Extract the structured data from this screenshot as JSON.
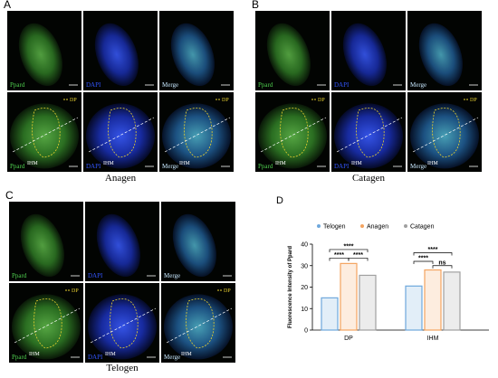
{
  "panels": [
    {
      "label": "A",
      "caption": "Anagen",
      "tiles": [
        "Ppard",
        "DAPI",
        "Merge"
      ],
      "dp": "DP",
      "ihm": "IHM"
    },
    {
      "label": "B",
      "caption": "Catagen",
      "tiles": [
        "Ppard",
        "DAPI",
        "Merge"
      ],
      "dp": "DP",
      "ihm": "IHM"
    },
    {
      "label": "C",
      "caption": "Telogen",
      "tiles": [
        "Ppard",
        "DAPI",
        "Merge"
      ],
      "dp": "DP",
      "ihm": "IHM"
    }
  ],
  "chart_data": {
    "type": "bar",
    "label": "D",
    "ylabel": "Fluorescence Intensity of Ppard",
    "categories": [
      "DP",
      "IHM"
    ],
    "series": [
      {
        "name": "Telogen",
        "color": "#6fa8dc",
        "values": [
          15,
          20.5
        ]
      },
      {
        "name": "Anagen",
        "color": "#f4a460",
        "values": [
          31,
          28
        ]
      },
      {
        "name": "Catagen",
        "color": "#a0a0a0",
        "values": [
          25.5,
          27
        ]
      }
    ],
    "ylim": [
      0,
      40
    ],
    "yticks": [
      0,
      10,
      20,
      30,
      40
    ],
    "annotations": [
      "****",
      "****",
      "****",
      "****",
      "ns",
      "****"
    ]
  }
}
